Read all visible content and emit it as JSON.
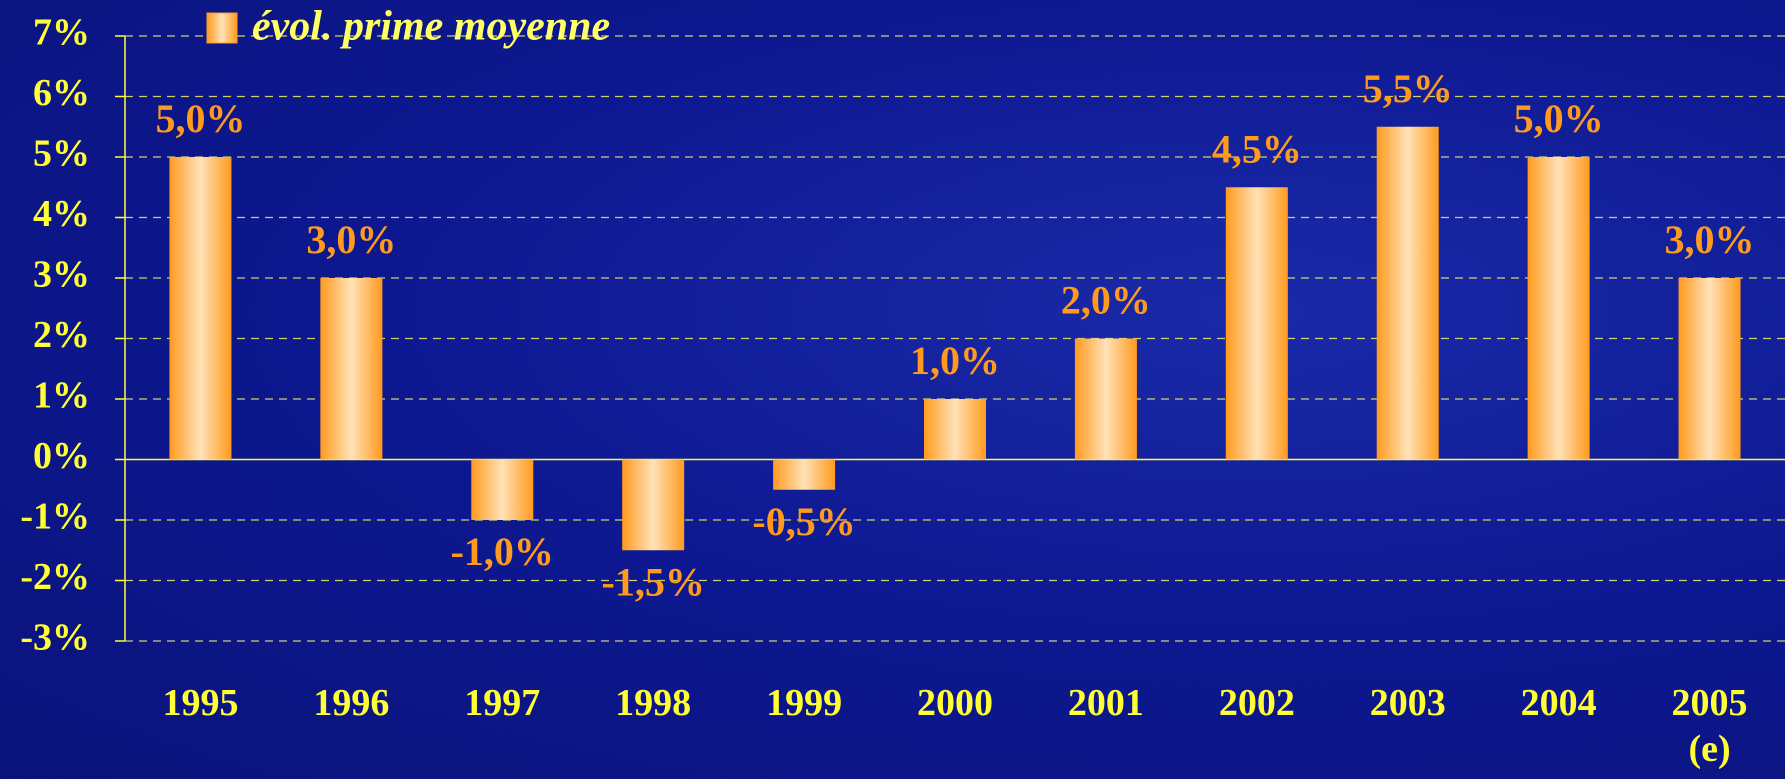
{
  "chart_data": {
    "type": "bar",
    "categories": [
      "1995",
      "1996",
      "1997",
      "1998",
      "1999",
      "2000",
      "2001",
      "2002",
      "2003",
      "2004",
      "2005\n(e)"
    ],
    "series": [
      {
        "name": "évol. prime moyenne",
        "color": "#ff9a1e",
        "values": [
          5.0,
          3.0,
          -1.0,
          -1.5,
          -0.5,
          1.0,
          2.0,
          4.5,
          5.5,
          5.0,
          3.0
        ],
        "value_labels": [
          "5,0%",
          "3,0%",
          "-1,0%",
          "-1,5%",
          "-0,5%",
          "1,0%",
          "2,0%",
          "4,5%",
          "5,5%",
          "5,0%",
          "3,0%"
        ]
      }
    ],
    "ylim": [
      -3,
      7
    ],
    "yticks": [
      {
        "value": -3,
        "label": "-3%"
      },
      {
        "value": -2,
        "label": "-2%"
      },
      {
        "value": -1,
        "label": "-1%"
      },
      {
        "value": 0,
        "label": "0%"
      },
      {
        "value": 1,
        "label": "1%"
      },
      {
        "value": 2,
        "label": "2%"
      },
      {
        "value": 3,
        "label": "3%"
      },
      {
        "value": 4,
        "label": "4%"
      },
      {
        "value": 5,
        "label": "5%"
      },
      {
        "value": 6,
        "label": "6%"
      },
      {
        "value": 7,
        "label": "7%"
      }
    ],
    "grid": true,
    "legend": "top"
  }
}
